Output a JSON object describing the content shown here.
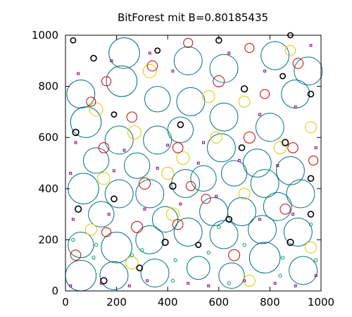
{
  "chart_data": {
    "type": "scatter",
    "title": "BitForest mit B=0.80185435",
    "xlabel": "",
    "ylabel": "",
    "xlim": [
      0,
      1000
    ],
    "ylim": [
      0,
      1000
    ],
    "xticks": [
      "0",
      "200",
      "400",
      "600",
      "800",
      "1000"
    ],
    "yticks": [
      "0",
      "200",
      "400",
      "600",
      "800",
      "1000"
    ],
    "grid": false,
    "legend": "none",
    "series": [
      {
        "color": "#00707f",
        "marker": "circle",
        "points": [
          [
            60,
            60
          ],
          [
            190,
            60
          ],
          [
            350,
            70
          ],
          [
            520,
            90
          ],
          [
            650,
            60
          ],
          [
            780,
            130
          ],
          [
            930,
            80
          ],
          [
            60,
            180
          ],
          [
            200,
            170
          ],
          [
            330,
            200
          ],
          [
            480,
            230
          ],
          [
            620,
            220
          ],
          [
            770,
            240
          ],
          [
            910,
            230
          ],
          [
            70,
            400
          ],
          [
            210,
            380
          ],
          [
            330,
            380
          ],
          [
            470,
            420
          ],
          [
            580,
            310
          ],
          [
            690,
            310
          ],
          [
            830,
            330
          ],
          [
            140,
            300
          ],
          [
            390,
            280
          ],
          [
            540,
            440
          ],
          [
            780,
            420
          ],
          [
            920,
            380
          ],
          [
            80,
            660
          ],
          [
            210,
            590
          ],
          [
            360,
            590
          ],
          [
            450,
            630
          ],
          [
            610,
            560
          ],
          [
            750,
            500
          ],
          [
            880,
            470
          ],
          [
            120,
            510
          ],
          [
            280,
            490
          ],
          [
            660,
            460
          ],
          [
            60,
            770
          ],
          [
            220,
            820
          ],
          [
            360,
            750
          ],
          [
            490,
            740
          ],
          [
            620,
            680
          ],
          [
            800,
            640
          ],
          [
            900,
            770
          ],
          [
            230,
            930
          ],
          [
            480,
            900
          ],
          [
            620,
            870
          ],
          [
            820,
            920
          ],
          [
            950,
            860
          ]
        ],
        "r": [
          60,
          55,
          55,
          45,
          50,
          60,
          55,
          50,
          60,
          55,
          55,
          55,
          55,
          55,
          60,
          55,
          55,
          55,
          55,
          55,
          55,
          50,
          50,
          50,
          55,
          55,
          60,
          55,
          55,
          50,
          55,
          55,
          55,
          50,
          50,
          50,
          55,
          60,
          50,
          55,
          55,
          55,
          55,
          60,
          55,
          55,
          55,
          55
        ]
      },
      {
        "color": "#e0c800",
        "marker": "circle",
        "points": [
          [
            100,
            240
          ],
          [
            150,
            440
          ],
          [
            270,
            620
          ],
          [
            420,
            300
          ],
          [
            560,
            760
          ],
          [
            700,
            380
          ],
          [
            840,
            560
          ],
          [
            960,
            640
          ],
          [
            120,
            710
          ],
          [
            330,
            860
          ],
          [
            460,
            520
          ],
          [
            700,
            740
          ],
          [
            880,
            940
          ],
          [
            260,
            110
          ],
          [
            720,
            40
          ],
          [
            400,
            460
          ],
          [
            590,
            600
          ],
          [
            960,
            170
          ]
        ],
        "r": [
          22,
          24,
          26,
          25,
          24,
          22,
          24,
          22,
          26,
          26,
          25,
          22,
          20,
          24,
          22,
          24,
          22,
          22
        ]
      },
      {
        "color": "#c80000",
        "marker": "circle",
        "points": [
          [
            40,
            140
          ],
          [
            160,
            230
          ],
          [
            280,
            250
          ],
          [
            440,
            260
          ],
          [
            490,
            410
          ],
          [
            660,
            140
          ],
          [
            860,
            320
          ],
          [
            970,
            510
          ],
          [
            150,
            560
          ],
          [
            310,
            420
          ],
          [
            550,
            360
          ],
          [
            720,
            600
          ],
          [
            890,
            560
          ],
          [
            100,
            740
          ],
          [
            260,
            680
          ],
          [
            440,
            560
          ],
          [
            600,
            820
          ],
          [
            780,
            770
          ],
          [
            910,
            890
          ],
          [
            160,
            820
          ],
          [
            340,
            880
          ],
          [
            480,
            970
          ],
          [
            720,
            950
          ]
        ],
        "r": [
          20,
          18,
          22,
          20,
          18,
          22,
          20,
          18,
          20,
          22,
          18,
          22,
          20,
          18,
          20,
          20,
          22,
          18,
          20,
          18,
          20,
          18,
          18
        ]
      },
      {
        "color": "#000000",
        "marker": "circle",
        "points": [
          [
            150,
            40
          ],
          [
            290,
            90
          ],
          [
            390,
            190
          ],
          [
            520,
            180
          ],
          [
            640,
            280
          ],
          [
            880,
            190
          ],
          [
            960,
            300
          ],
          [
            50,
            320
          ],
          [
            190,
            360
          ],
          [
            420,
            410
          ],
          [
            690,
            560
          ],
          [
            860,
            580
          ],
          [
            960,
            440
          ],
          [
            40,
            620
          ],
          [
            190,
            690
          ],
          [
            450,
            650
          ],
          [
            700,
            790
          ],
          [
            850,
            840
          ],
          [
            960,
            770
          ],
          [
            30,
            980
          ],
          [
            110,
            910
          ],
          [
            360,
            940
          ],
          [
            600,
            980
          ],
          [
            880,
            1000
          ]
        ],
        "r": [
          12,
          11,
          12,
          10,
          11,
          12,
          11,
          12,
          11,
          12,
          11,
          12,
          11,
          12,
          10,
          11,
          12,
          10,
          11,
          10,
          11,
          10,
          11,
          10
        ]
      },
      {
        "color": "#800080",
        "marker": "square",
        "points": [
          [
            20,
            20
          ],
          [
            140,
            30
          ],
          [
            250,
            20
          ],
          [
            320,
            40
          ],
          [
            480,
            30
          ],
          [
            560,
            20
          ],
          [
            700,
            40
          ],
          [
            820,
            30
          ],
          [
            900,
            20
          ],
          [
            980,
            60
          ],
          [
            30,
            280
          ],
          [
            170,
            300
          ],
          [
            310,
            320
          ],
          [
            450,
            340
          ],
          [
            590,
            370
          ],
          [
            760,
            280
          ],
          [
            890,
            300
          ],
          [
            20,
            460
          ],
          [
            190,
            470
          ],
          [
            360,
            480
          ],
          [
            520,
            500
          ],
          [
            680,
            510
          ],
          [
            830,
            490
          ],
          [
            980,
            560
          ],
          [
            40,
            580
          ],
          [
            230,
            550
          ],
          [
            400,
            570
          ],
          [
            540,
            580
          ],
          [
            760,
            690
          ],
          [
            900,
            720
          ],
          [
            50,
            850
          ],
          [
            180,
            900
          ],
          [
            330,
            930
          ],
          [
            420,
            860
          ],
          [
            640,
            930
          ],
          [
            780,
            860
          ],
          [
            960,
            960
          ]
        ],
        "r": [
          4,
          4,
          4,
          4,
          4,
          4,
          4,
          4,
          4,
          4,
          4,
          4,
          4,
          4,
          4,
          4,
          4,
          4,
          4,
          4,
          4,
          4,
          4,
          4,
          4,
          4,
          4,
          4,
          4,
          4,
          4,
          4,
          4,
          4,
          4,
          4,
          4
        ]
      },
      {
        "color": "#00a060",
        "marker": "circle",
        "points": [
          [
            110,
            130
          ],
          [
            260,
            140
          ],
          [
            300,
            160
          ],
          [
            430,
            120
          ],
          [
            560,
            150
          ],
          [
            700,
            180
          ],
          [
            850,
            130
          ],
          [
            980,
            120
          ],
          [
            120,
            180
          ],
          [
            640,
            30
          ],
          [
            840,
            60
          ],
          [
            960,
            260
          ],
          [
            30,
            200
          ],
          [
            420,
            40
          ],
          [
            600,
            250
          ]
        ],
        "r": [
          6,
          6,
          6,
          6,
          6,
          6,
          6,
          6,
          6,
          6,
          6,
          6,
          6,
          6,
          6
        ]
      }
    ]
  }
}
